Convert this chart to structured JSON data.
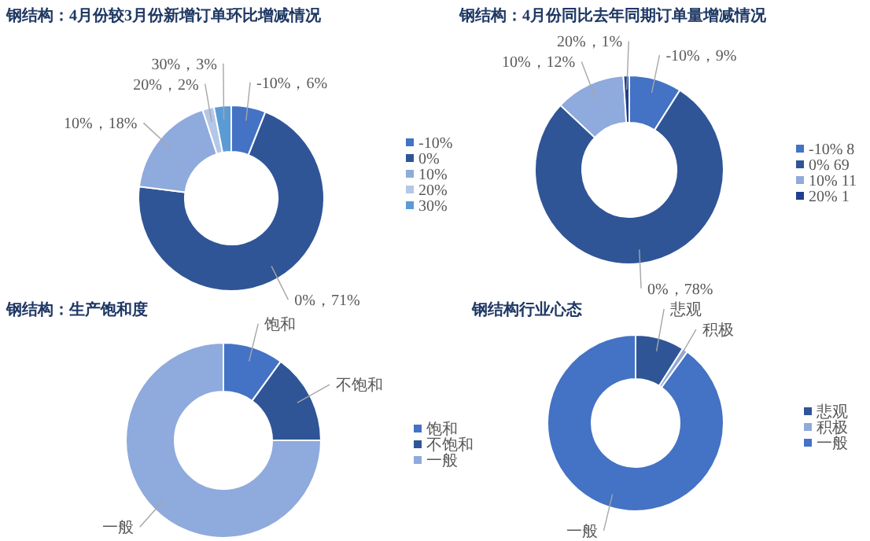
{
  "chart_data": [
    {
      "type": "donut",
      "title": "钢结构：4月份较3月份新增订单环比增减情况",
      "categories": [
        "-10%",
        "0%",
        "10%",
        "20%",
        "30%"
      ],
      "values": [
        6,
        71,
        18,
        2,
        3
      ],
      "colors": [
        "#4472c4",
        "#2f5597",
        "#8faadc",
        "#b4c7e7",
        "#5b9bd5"
      ],
      "value_labels": [
        "-10%，6%",
        "0%，71%",
        "10%，18%",
        "20%，2%",
        "30%，3%"
      ],
      "legend": "right"
    },
    {
      "type": "donut",
      "title": "钢结构：4月份同比去年同期订单量增减情况",
      "categories": [
        "-10% 8",
        "0% 69",
        "10% 11",
        "20% 1"
      ],
      "values": [
        9,
        78,
        12,
        1
      ],
      "colors": [
        "#4472c4",
        "#2f5597",
        "#8faadc",
        "#1f3f8f"
      ],
      "value_labels": [
        "-10%，9%",
        "0%，78%",
        "10%，12%",
        "20%，1%"
      ],
      "legend": "right"
    },
    {
      "type": "donut",
      "title": "钢结构：生产饱和度",
      "categories": [
        "饱和",
        "不饱和",
        "一般"
      ],
      "values": [
        10,
        15,
        75
      ],
      "colors": [
        "#4472c4",
        "#2f5597",
        "#8faadc"
      ],
      "value_labels": [
        "饱和",
        "不饱和",
        "一般"
      ],
      "legend": "right"
    },
    {
      "type": "donut",
      "title": "钢结构行业心态",
      "categories": [
        "悲观",
        "积极",
        "一般"
      ],
      "values": [
        9,
        1,
        90
      ],
      "colors": [
        "#2f5597",
        "#8faadc",
        "#4472c4"
      ],
      "value_labels": [
        "悲观",
        "积极",
        "一般"
      ],
      "legend": "right"
    }
  ]
}
